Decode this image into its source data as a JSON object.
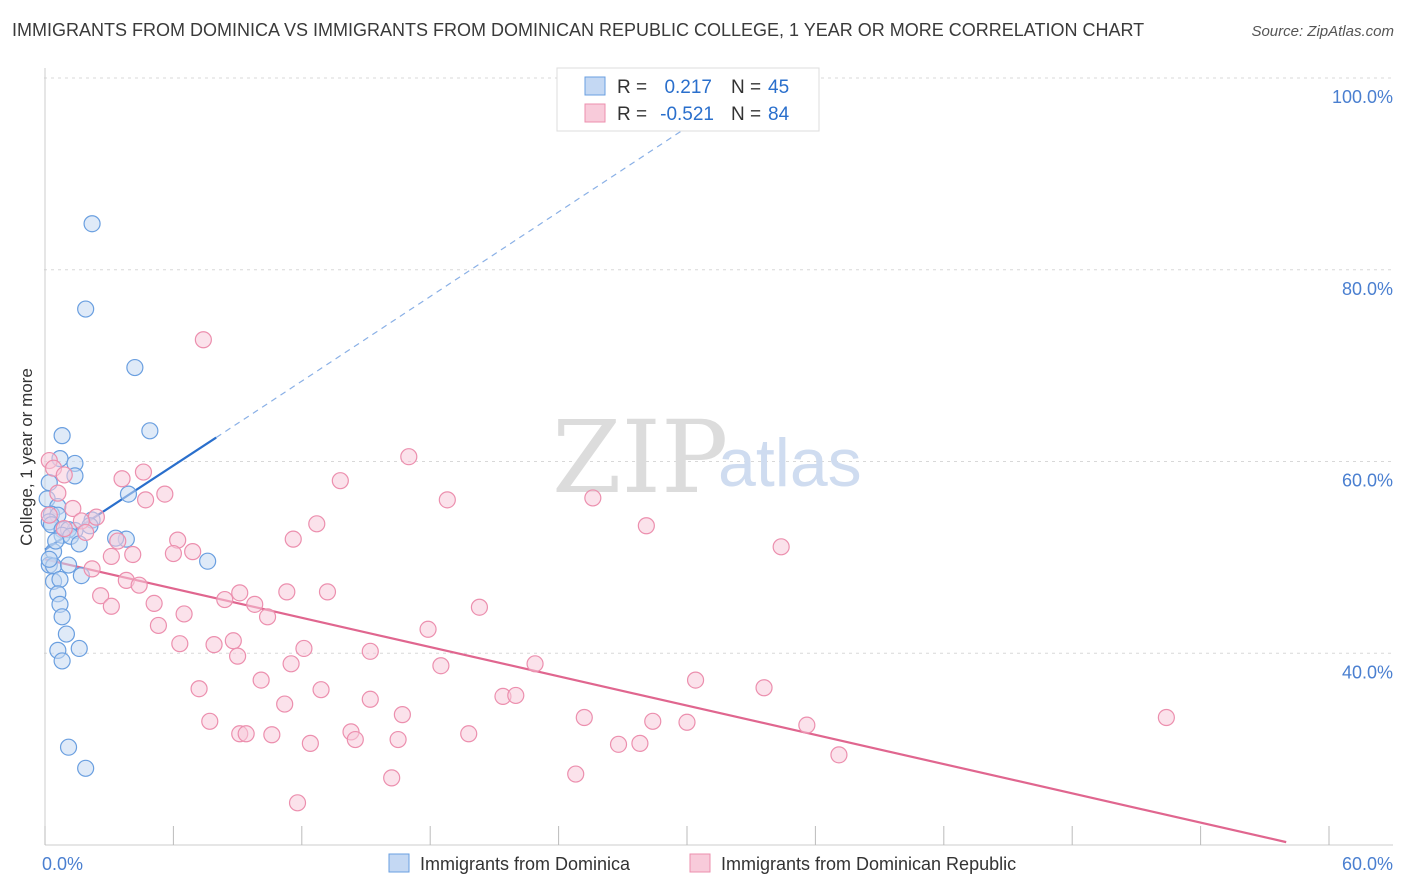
{
  "title": "IMMIGRANTS FROM DOMINICA VS IMMIGRANTS FROM DOMINICAN REPUBLIC COLLEGE, 1 YEAR OR MORE CORRELATION CHART",
  "source": "Source: ZipAtlas.com",
  "watermark": {
    "zip": "ZIP",
    "atlas": "atlas"
  },
  "chart_data": {
    "type": "scatter",
    "title": "IMMIGRANTS FROM DOMINICA VS IMMIGRANTS FROM DOMINICAN REPUBLIC COLLEGE, 1 YEAR OR MORE CORRELATION CHART",
    "xlabel": "",
    "ylabel": "College, 1 year or more",
    "xlim": [
      0,
      60
    ],
    "ylim": [
      20,
      100
    ],
    "x_tick_labels": {
      "left": "0.0%",
      "right": "60.0%"
    },
    "y_ticks": [
      {
        "value": 100,
        "label": "100.0%"
      },
      {
        "value": 80,
        "label": "80.0%"
      },
      {
        "value": 60,
        "label": "60.0%"
      },
      {
        "value": 40,
        "label": "40.0%"
      }
    ],
    "legend": [
      {
        "r_label": "R =",
        "r_value": "0.217",
        "n_label": "N =",
        "n_value": "45"
      },
      {
        "r_label": "R =",
        "r_value": "-0.521",
        "n_label": "N =",
        "n_value": "84"
      }
    ],
    "series": [
      {
        "name": "Immigrants from Dominica",
        "color": "#6a9fe0",
        "fill": "#c4d8f3",
        "trend": {
          "solid": [
            [
              0,
              50.8
            ],
            [
              8,
              62.5
            ]
          ],
          "dashed": [
            [
              8,
              62.5
            ],
            [
              32,
              97.8
            ]
          ],
          "color": "#2a6fcc"
        },
        "points": [
          [
            2.2,
            84.8
          ],
          [
            1.9,
            75.9
          ],
          [
            4.2,
            69.8
          ],
          [
            4.9,
            63.2
          ],
          [
            0.8,
            62.7
          ],
          [
            0.7,
            60.3
          ],
          [
            1.4,
            59.8
          ],
          [
            1.4,
            58.5
          ],
          [
            0.2,
            57.8
          ],
          [
            3.9,
            56.6
          ],
          [
            0.1,
            56.1
          ],
          [
            0.6,
            55.3
          ],
          [
            0.3,
            54.5
          ],
          [
            0.6,
            54.4
          ],
          [
            2.2,
            53.9
          ],
          [
            0.2,
            53.7
          ],
          [
            0.3,
            53.4
          ],
          [
            0.8,
            52.9
          ],
          [
            1.4,
            52.8
          ],
          [
            2.1,
            53.3
          ],
          [
            1.1,
            52.9
          ],
          [
            0.8,
            52.3
          ],
          [
            1.2,
            52.2
          ],
          [
            1.6,
            51.4
          ],
          [
            3.8,
            51.9
          ],
          [
            0.4,
            50.6
          ],
          [
            0.2,
            49.2
          ],
          [
            0.4,
            49.1
          ],
          [
            1.1,
            49.2
          ],
          [
            7.6,
            49.6
          ],
          [
            1.7,
            48.1
          ],
          [
            0.4,
            47.5
          ],
          [
            0.7,
            47.7
          ],
          [
            0.6,
            46.2
          ],
          [
            0.7,
            45.1
          ],
          [
            0.8,
            43.8
          ],
          [
            1.0,
            42.0
          ],
          [
            0.6,
            40.3
          ],
          [
            1.6,
            40.5
          ],
          [
            0.8,
            39.2
          ],
          [
            1.1,
            30.2
          ],
          [
            1.9,
            28.0
          ],
          [
            0.2,
            49.8
          ],
          [
            0.5,
            51.7
          ],
          [
            3.3,
            52.0
          ]
        ]
      },
      {
        "name": "Immigrants from Dominican Republic",
        "color": "#ec8fae",
        "fill": "#f8cbda",
        "trend": {
          "solid": [
            [
              0,
              49.8
            ],
            [
              58,
              20.3
            ]
          ],
          "color": "#e0668f"
        },
        "points": [
          [
            7.4,
            72.7
          ],
          [
            17.0,
            60.5
          ],
          [
            0.2,
            60.1
          ],
          [
            0.4,
            59.3
          ],
          [
            4.6,
            58.9
          ],
          [
            0.9,
            58.6
          ],
          [
            3.6,
            58.2
          ],
          [
            13.8,
            58.0
          ],
          [
            5.6,
            56.6
          ],
          [
            0.6,
            56.7
          ],
          [
            4.7,
            56.0
          ],
          [
            18.8,
            56.0
          ],
          [
            25.6,
            56.2
          ],
          [
            1.3,
            55.1
          ],
          [
            0.2,
            54.4
          ],
          [
            2.4,
            54.2
          ],
          [
            1.7,
            53.8
          ],
          [
            12.7,
            53.5
          ],
          [
            28.1,
            53.3
          ],
          [
            0.9,
            53.0
          ],
          [
            1.9,
            52.6
          ],
          [
            6.2,
            51.8
          ],
          [
            11.6,
            51.9
          ],
          [
            3.4,
            51.7
          ],
          [
            34.4,
            51.1
          ],
          [
            6.0,
            50.4
          ],
          [
            6.9,
            50.6
          ],
          [
            4.1,
            50.3
          ],
          [
            3.1,
            50.1
          ],
          [
            2.2,
            48.8
          ],
          [
            3.8,
            47.6
          ],
          [
            4.4,
            47.1
          ],
          [
            9.1,
            46.3
          ],
          [
            11.3,
            46.4
          ],
          [
            13.2,
            46.4
          ],
          [
            2.6,
            46.0
          ],
          [
            8.4,
            45.6
          ],
          [
            5.1,
            45.2
          ],
          [
            9.8,
            45.1
          ],
          [
            3.1,
            44.9
          ],
          [
            20.3,
            44.8
          ],
          [
            6.5,
            44.1
          ],
          [
            10.4,
            43.8
          ],
          [
            5.3,
            42.9
          ],
          [
            17.9,
            42.5
          ],
          [
            8.8,
            41.3
          ],
          [
            6.3,
            41.0
          ],
          [
            7.9,
            40.9
          ],
          [
            12.1,
            40.5
          ],
          [
            15.2,
            40.2
          ],
          [
            9.0,
            39.7
          ],
          [
            11.5,
            38.9
          ],
          [
            18.5,
            38.7
          ],
          [
            22.9,
            38.9
          ],
          [
            30.4,
            37.2
          ],
          [
            10.1,
            37.2
          ],
          [
            7.2,
            36.3
          ],
          [
            12.9,
            36.2
          ],
          [
            33.6,
            36.4
          ],
          [
            21.4,
            35.5
          ],
          [
            22.0,
            35.6
          ],
          [
            15.2,
            35.2
          ],
          [
            11.2,
            34.7
          ],
          [
            16.7,
            33.6
          ],
          [
            25.2,
            33.3
          ],
          [
            52.4,
            33.3
          ],
          [
            7.7,
            32.9
          ],
          [
            28.4,
            32.9
          ],
          [
            30.0,
            32.8
          ],
          [
            35.6,
            32.5
          ],
          [
            14.3,
            31.8
          ],
          [
            19.8,
            31.6
          ],
          [
            9.1,
            31.6
          ],
          [
            9.4,
            31.6
          ],
          [
            10.6,
            31.5
          ],
          [
            14.5,
            31.0
          ],
          [
            16.5,
            31.0
          ],
          [
            12.4,
            30.6
          ],
          [
            27.8,
            30.6
          ],
          [
            26.8,
            30.5
          ],
          [
            37.1,
            29.4
          ],
          [
            24.8,
            27.4
          ],
          [
            16.2,
            27.0
          ],
          [
            11.8,
            24.4
          ]
        ]
      }
    ]
  }
}
